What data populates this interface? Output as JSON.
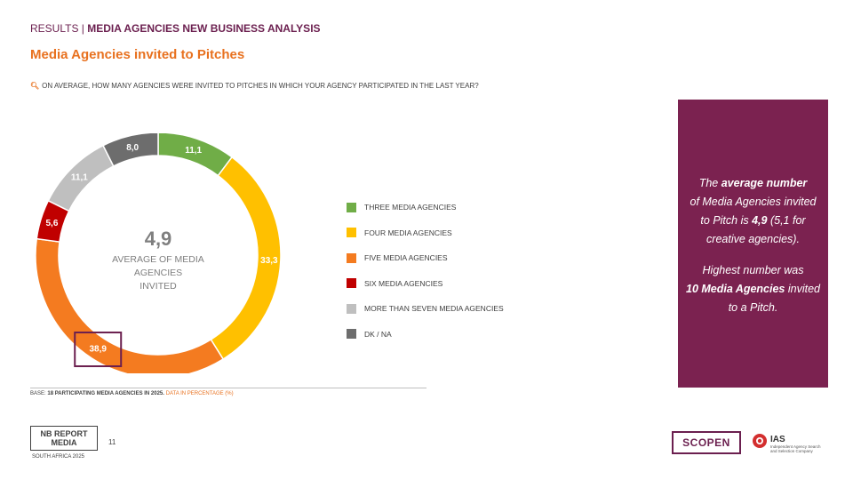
{
  "header": {
    "prefix": "RESULTS |",
    "section": "MEDIA AGENCIES NEW BUSINESS ANALYSIS",
    "title": "Media Agencies invited to Pitches",
    "question": "ON AVERAGE, HOW MANY AGENCIES WERE INVITED TO PITCHES IN WHICH YOUR AGENCY PARTICIPATED IN THE LAST YEAR?"
  },
  "chart_data": {
    "type": "pie",
    "variant": "donut",
    "categories": [
      "THREE MEDIA AGENCIES",
      "FOUR MEDIA AGENCIES",
      "FIVE MEDIA AGENCIES",
      "SIX MEDIA AGENCIES",
      "MORE THAN SEVEN MEDIA AGENCIES",
      "DK / NA"
    ],
    "values": [
      11.1,
      33.3,
      38.9,
      5.6,
      11.1,
      8.0
    ],
    "value_labels": [
      "11,1",
      "33,3",
      "38,9",
      "5,6",
      "11,1",
      "8,0"
    ],
    "colors": [
      "#70ad47",
      "#ffc000",
      "#f47b20",
      "#c00000",
      "#bfbfbf",
      "#6d6d6d"
    ],
    "highlighted_index": 2,
    "center_value": "4,9",
    "center_text": [
      "AVERAGE OF MEDIA",
      "AGENCIES",
      "INVITED"
    ],
    "legend_position": "right"
  },
  "callout": {
    "l1_pre": "The ",
    "l1_bold": "average number",
    "l2": "of Media Agencies invited",
    "l3_pre": "to Pitch is ",
    "l3_bold": "4,9",
    "l3_post": " (5,1 for",
    "l4": "creative agencies).",
    "l5": "Highest number was",
    "l6_bold": "10 Media Agencies",
    "l6_post": " invited",
    "l7": "to a Pitch."
  },
  "footer": {
    "base_prefix": "BASE:",
    "base_text": "18 PARTICIPATING MEDIA AGENCIES IN 2025.",
    "base_highlight": "DATA IN PERCENTAGE (%)",
    "logo_line1": "NB REPORT",
    "logo_line2": "MEDIA",
    "logo_sub": "SOUTH AFRICA 2025",
    "page_number": "11",
    "scopen_logo": "SCOPEN",
    "ias_logo": "IAS",
    "ias_tagline": "Independent Agency Search and Selection Company"
  },
  "colors": {
    "brand": "#6b1f4f",
    "accent": "#e8711f"
  }
}
